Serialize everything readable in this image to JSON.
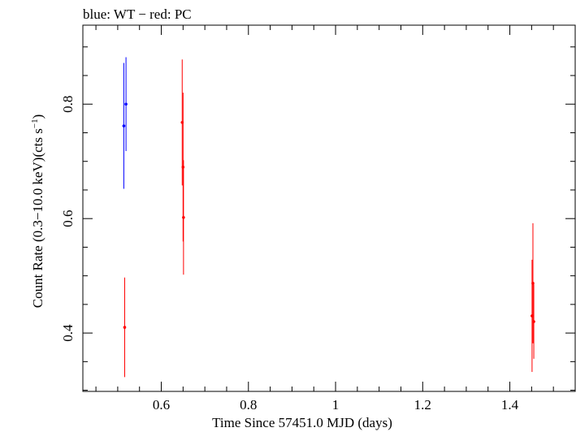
{
  "chart_data": {
    "type": "scatter",
    "title": "blue: WT − red: PC",
    "xlabel": "Time Since 57451.0 MJD (days)",
    "ylabel_main": "Count Rate (0.3−10.0 keV)(cts s",
    "ylabel_sup": "−1",
    "ylabel_end": ")",
    "xlim": [
      0.42,
      1.55
    ],
    "ylim": [
      0.298,
      0.938
    ],
    "x_major_ticks": [
      0.6,
      0.8,
      1.0,
      1.2,
      1.4
    ],
    "x_tick_labels": [
      "0.6",
      "0.8",
      "1",
      "1.2",
      "1.4"
    ],
    "x_minor_ticks": [
      0.45,
      0.5,
      0.55,
      0.65,
      0.7,
      0.75,
      0.85,
      0.9,
      0.95,
      1.05,
      1.1,
      1.15,
      1.25,
      1.3,
      1.35,
      1.45,
      1.5,
      1.55
    ],
    "y_major_ticks": [
      0.4,
      0.6,
      0.8
    ],
    "y_tick_labels": [
      "0.4",
      "0.6",
      "0.8"
    ],
    "y_minor_ticks": [
      0.3,
      0.35,
      0.45,
      0.5,
      0.55,
      0.65,
      0.7,
      0.75,
      0.85,
      0.9
    ],
    "series": [
      {
        "name": "WT",
        "color": "#0000ff",
        "points": [
          {
            "x": 0.514,
            "y": 0.762,
            "yerr": 0.11
          },
          {
            "x": 0.519,
            "y": 0.8,
            "yerr": 0.082
          }
        ]
      },
      {
        "name": "PC",
        "color": "#ff0000",
        "points": [
          {
            "x": 0.516,
            "y": 0.41,
            "yerr": 0.087
          },
          {
            "x": 0.648,
            "y": 0.768,
            "yerr": 0.11
          },
          {
            "x": 0.65,
            "y": 0.69,
            "yerr": 0.13
          },
          {
            "x": 0.651,
            "y": 0.602,
            "yerr": 0.1
          },
          {
            "x": 1.451,
            "y": 0.43,
            "yerr": 0.098
          },
          {
            "x": 1.453,
            "y": 0.487,
            "yerr": 0.105
          },
          {
            "x": 1.455,
            "y": 0.42,
            "yerr": 0.065
          }
        ]
      }
    ]
  }
}
